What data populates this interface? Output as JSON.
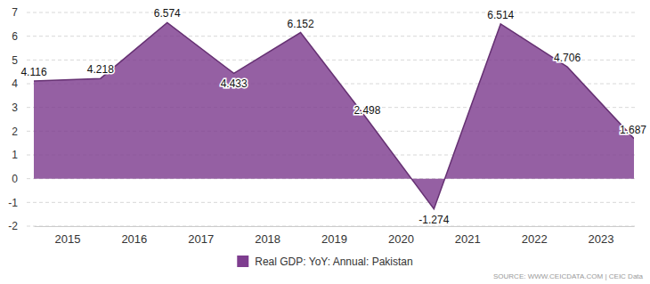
{
  "chart_data": {
    "type": "area",
    "x": [
      2014.5,
      2015.5,
      2016.5,
      2017.5,
      2018.5,
      2019.5,
      2020.5,
      2021.5,
      2022.5,
      2023.5
    ],
    "series": [
      {
        "name": "Real GDP: YoY: Annual: Pakistan",
        "color": "#7e3d8f",
        "values": [
          4.116,
          4.218,
          6.574,
          4.433,
          6.152,
          2.498,
          -1.274,
          6.514,
          4.706,
          1.687
        ]
      }
    ],
    "xlim": [
      2014.5,
      2023.5
    ],
    "xticks": [
      2015,
      2016,
      2017,
      2018,
      2019,
      2020,
      2021,
      2022,
      2023
    ],
    "ylim": [
      -2,
      7
    ],
    "yticks": [
      -2,
      -1,
      0,
      1,
      2,
      3,
      4,
      5,
      6,
      7
    ],
    "grid": true,
    "legend": "bottom",
    "data_labels": true,
    "source": "SOURCE: WWW.CEICDATA.COM | CEIC Data"
  }
}
